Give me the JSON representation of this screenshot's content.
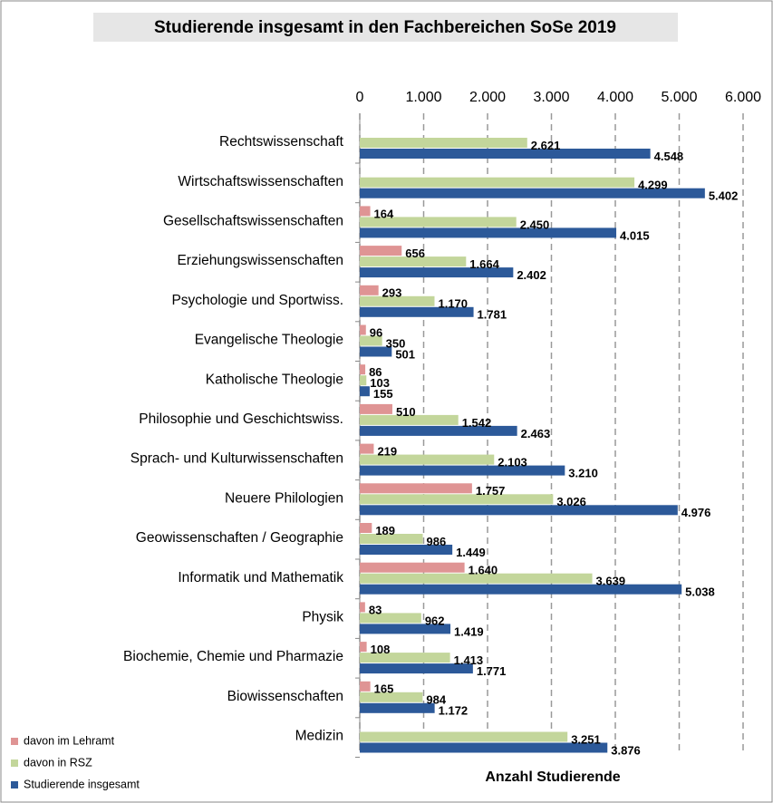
{
  "chart_data": {
    "type": "bar",
    "orientation": "horizontal",
    "title": "Studierende insgesamt in den Fachbereichen SoSe 2019",
    "x_label": "Anzahl Studierende",
    "categories": [
      "Rechtswissenschaft",
      "Wirtschaftswissenschaften",
      "Gesellschaftswissenschaften",
      "Erziehungswissenschaften",
      "Psychologie und Sportwiss.",
      "Evangelische Theologie",
      "Katholische Theologie",
      "Philosophie und Geschichtswiss.",
      "Sprach- und Kulturwissenschaften",
      "Neuere Philologien",
      "Geowissenschaften / Geographie",
      "Informatik und Mathematik",
      "Physik",
      "Biochemie, Chemie und Pharmazie",
      "Biowissenschaften",
      "Medizin"
    ],
    "series": [
      {
        "name": "davon im Lehramt",
        "color": "#df9494",
        "values": [
          null,
          null,
          164,
          656,
          293,
          96,
          86,
          510,
          219,
          1757,
          189,
          1640,
          83,
          108,
          165,
          null
        ],
        "value_labels": [
          null,
          null,
          "164",
          "656",
          "293",
          "96",
          "86",
          "510",
          "219",
          "1.757",
          "189",
          "1.640",
          "83",
          "108",
          "165",
          null
        ]
      },
      {
        "name": "davon in RSZ",
        "color": "#c3d69b",
        "values": [
          2621,
          4299,
          2450,
          1664,
          1170,
          350,
          103,
          1542,
          2103,
          3026,
          986,
          3639,
          962,
          1413,
          984,
          3251
        ],
        "value_labels": [
          "2.621",
          "4.299",
          "2.450",
          "1.664",
          "1.170",
          "350",
          "103",
          "1.542",
          "2.103",
          "3.026",
          "986",
          "3.639",
          "962",
          "1.413",
          "984",
          "3.251"
        ]
      },
      {
        "name": "Studierende insgesamt",
        "color": "#2c5999",
        "values": [
          4548,
          5402,
          4015,
          2402,
          1781,
          501,
          155,
          2463,
          3210,
          4976,
          1449,
          5038,
          1419,
          1771,
          1172,
          3876
        ],
        "value_labels": [
          "4.548",
          "5.402",
          "4.015",
          "2.402",
          "1.781",
          "501",
          "155",
          "2.463",
          "3.210",
          "4.976",
          "1.449",
          "5.038",
          "1.419",
          "1.771",
          "1.172",
          "3.876"
        ]
      }
    ],
    "xlim": [
      0,
      6000
    ],
    "xticks": [
      0,
      {
        "value": 1000,
        "label": "1.000"
      },
      {
        "value": 2000,
        "label": "2.000"
      },
      {
        "value": 3000,
        "label": "3.000"
      },
      {
        "value": 4000,
        "label": "4.000"
      },
      {
        "value": 5000,
        "label": "5.000"
      },
      {
        "value": 6000,
        "label": "6.000"
      }
    ],
    "grid": true,
    "legend": "bottom-left"
  }
}
